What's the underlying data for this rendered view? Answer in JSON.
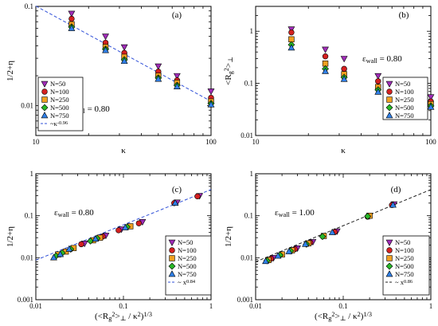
{
  "colors": {
    "N=50": "#a02cb8",
    "N=100": "#d42020",
    "N=250": "#f0a020",
    "N=500": "#28b828",
    "N=750": "#3080e8",
    "fit_a": "#3050d8",
    "fit_c": "#3050d8",
    "fit_d": "#222222"
  },
  "markers": {
    "N=50": "triangle-down",
    "N=100": "circle",
    "N=250": "square",
    "N=500": "diamond",
    "N=750": "triangle-up"
  },
  "chart_data": [
    {
      "id": "a",
      "type": "scatter",
      "panel_label": "(a)",
      "xlabel": "κ",
      "ylabel": "1/2+η",
      "xscale": "log",
      "yscale": "log",
      "xlim": [
        10,
        100
      ],
      "ylim": [
        0.005,
        0.1
      ],
      "xticks": [
        10,
        100
      ],
      "xtick_labels": [
        "10",
        "100"
      ],
      "yticks": [
        0.01,
        0.1
      ],
      "ytick_labels": [
        "0.01",
        "0.1"
      ],
      "annotation": {
        "main": "ε",
        "sub": "wall",
        "rest": " = 0.80"
      },
      "legend_position": "bottom-left",
      "x": [
        16,
        25,
        32,
        50,
        64,
        100
      ],
      "series": [
        {
          "name": "N=50",
          "values": [
            0.085,
            0.05,
            0.039,
            0.025,
            0.02,
            0.014
          ]
        },
        {
          "name": "N=100",
          "values": [
            0.075,
            0.043,
            0.034,
            0.022,
            0.018,
            0.012
          ]
        },
        {
          "name": "N=250",
          "values": [
            0.066,
            0.039,
            0.031,
            0.02,
            0.017,
            0.011
          ]
        },
        {
          "name": "N=500",
          "values": [
            0.062,
            0.037,
            0.029,
            0.019,
            0.016,
            0.0105
          ]
        },
        {
          "name": "N=750",
          "values": [
            0.06,
            0.036,
            0.028,
            0.0185,
            0.0155,
            0.0102
          ]
        }
      ],
      "fit": {
        "label": "~κ",
        "exponent_label": "-0.96",
        "exponent": -0.96,
        "prefactor": 0.92,
        "dashed": true
      }
    },
    {
      "id": "b",
      "type": "scatter",
      "panel_label": "(b)",
      "xlabel": "κ",
      "ylabel": {
        "open": "<R",
        "sub": "g",
        "sup": "2",
        "close": ">",
        "sub2": "⊥"
      },
      "xscale": "log",
      "yscale": "log",
      "xlim": [
        10,
        100
      ],
      "ylim": [
        0.01,
        3
      ],
      "xticks": [
        10,
        100
      ],
      "xtick_labels": [
        "10",
        "100"
      ],
      "yticks": [
        0.01,
        0.1,
        1
      ],
      "ytick_labels": [
        "0.01",
        "0.1",
        "1"
      ],
      "annotation": {
        "main": "ε",
        "sub": "wall",
        "rest": " = 0.80"
      },
      "legend_position": "bottom-right",
      "x": [
        16,
        25,
        32,
        50,
        64,
        100
      ],
      "series": [
        {
          "name": "N=50",
          "values": [
            1.1,
            0.45,
            0.3,
            0.14,
            0.1,
            0.055
          ]
        },
        {
          "name": "N=100",
          "values": [
            0.95,
            0.33,
            0.19,
            0.11,
            0.075,
            0.045
          ]
        },
        {
          "name": "N=250",
          "values": [
            0.7,
            0.24,
            0.15,
            0.085,
            0.065,
            0.04
          ]
        },
        {
          "name": "N=500",
          "values": [
            0.55,
            0.19,
            0.13,
            0.075,
            0.058,
            0.037
          ]
        },
        {
          "name": "N=750",
          "values": [
            0.48,
            0.17,
            0.12,
            0.068,
            0.053,
            0.035
          ]
        }
      ]
    },
    {
      "id": "c",
      "type": "scatter",
      "panel_label": "(c)",
      "xlabel": {
        "open": "(<R",
        "sub": "g",
        "sup": "2",
        "close": ">",
        "sub2": "⊥",
        "rest": " / κ",
        "sup2": "2",
        "tail": ")",
        "sup3": "1/3"
      },
      "ylabel": "1/2+η",
      "xscale": "log",
      "yscale": "log",
      "xlim": [
        0.01,
        1
      ],
      "ylim": [
        0.001,
        1
      ],
      "xticks": [
        0.01,
        0.1,
        1
      ],
      "xtick_labels": [
        "0.01",
        "0.1",
        "1"
      ],
      "yticks": [
        0.001,
        0.01,
        0.1,
        1
      ],
      "ytick_labels": [
        "0.001",
        "0.01",
        "0.1",
        "1"
      ],
      "annotation": {
        "main": "ε",
        "sub": "wall",
        "rest": " = 0.80"
      },
      "legend_position": "bottom-right",
      "series": [
        {
          "name": "N=50",
          "x": [
            0.74,
            0.41,
            0.165,
            0.095,
            0.063,
            0.036
          ],
          "y": [
            0.3,
            0.21,
            0.072,
            0.048,
            0.034,
            0.022
          ]
        },
        {
          "name": "N=100",
          "x": [
            0.7,
            0.38,
            0.15,
            0.088,
            0.058,
            0.033
          ],
          "y": [
            0.29,
            0.2,
            0.066,
            0.045,
            0.032,
            0.021
          ]
        },
        {
          "name": "N=250",
          "x": [
            0.12,
            0.054,
            0.045,
            0.027,
            0.022,
            0.018
          ],
          "y": [
            0.056,
            0.03,
            0.026,
            0.017,
            0.014,
            0.012
          ]
        },
        {
          "name": "N=500",
          "x": [
            0.11,
            0.05,
            0.042,
            0.025,
            0.02,
            0.017
          ],
          "y": [
            0.054,
            0.029,
            0.025,
            0.016,
            0.013,
            0.011
          ]
        },
        {
          "name": "N=750",
          "x": [
            0.39,
            0.105,
            0.048,
            0.024,
            0.019,
            0.016
          ],
          "y": [
            0.2,
            0.052,
            0.028,
            0.016,
            0.012,
            0.01
          ]
        }
      ],
      "fit": {
        "label": "~ x",
        "exponent_label": "0.84",
        "exponent": 0.84,
        "prefactor": 0.42,
        "dashed": true
      }
    },
    {
      "id": "d",
      "type": "scatter",
      "panel_label": "(d)",
      "xlabel": {
        "open": "(<R",
        "sub": "g",
        "sup": "2",
        "close": ">",
        "sub2": "⊥",
        "rest": " / κ",
        "sup2": "2",
        "tail": ")",
        "sup3": "1/3"
      },
      "ylabel": "1/2+η",
      "xscale": "log",
      "yscale": "log",
      "xlim": [
        0.01,
        1
      ],
      "ylim": [
        0.001,
        1
      ],
      "xticks": [
        0.01,
        0.1,
        1
      ],
      "xtick_labels": [
        "0.01",
        "0.1",
        "1"
      ],
      "yticks": [
        0.001,
        0.01,
        0.1,
        1
      ],
      "ytick_labels": [
        "0.001",
        "0.01",
        "0.1",
        "1"
      ],
      "annotation": {
        "main": "ε",
        "sub": "wall",
        "rest": " = 1.00"
      },
      "legend_position": "bottom-right",
      "series": [
        {
          "name": "N=50",
          "x": [
            0.38,
            0.2,
            0.085,
            0.045,
            0.03,
            0.016
          ],
          "y": [
            0.19,
            0.1,
            0.043,
            0.024,
            0.017,
            0.01
          ]
        },
        {
          "name": "N=100",
          "x": [
            0.36,
            0.19,
            0.08,
            0.042,
            0.028,
            0.015
          ],
          "y": [
            0.18,
            0.095,
            0.041,
            0.023,
            0.016,
            0.0095
          ]
        },
        {
          "name": "N=250",
          "x": [
            0.2,
            0.06,
            0.04,
            0.026,
            0.02,
            0.014
          ],
          "y": [
            0.1,
            0.033,
            0.022,
            0.015,
            0.012,
            0.0088
          ]
        },
        {
          "name": "N=500",
          "x": [
            0.19,
            0.058,
            0.038,
            0.025,
            0.019,
            0.0135
          ],
          "y": [
            0.097,
            0.032,
            0.021,
            0.0145,
            0.0115,
            0.0085
          ]
        },
        {
          "name": "N=750",
          "x": [
            0.37,
            0.075,
            0.037,
            0.024,
            0.018,
            0.013
          ],
          "y": [
            0.18,
            0.04,
            0.021,
            0.014,
            0.011,
            0.0082
          ]
        }
      ],
      "fit": {
        "label": "~ x",
        "exponent_label": "0.86",
        "exponent": 0.86,
        "prefactor": 0.42,
        "dashed": true
      }
    }
  ]
}
